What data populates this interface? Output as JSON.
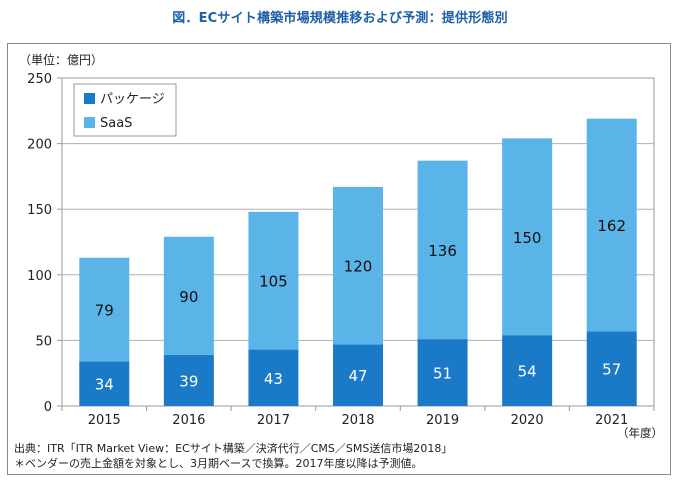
{
  "header": {
    "title": "図．ECサイト構築市場規模推移および予測：提供形態別",
    "unit_label": "（単位：億円）",
    "x_unit_label": "（年度）"
  },
  "footer": {
    "source": "出典：ITR「ITR Market View：ECサイト構築／決済代行／CMS／SMS送信市場2018」",
    "note": "＊ベンダーの売上金額を対象とし、3月期ベースで換算。2017年度以降は予測値。"
  },
  "chart_data": {
    "type": "bar",
    "stacked": true,
    "title": "図．ECサイト構築市場規模推移および予測：提供形態別",
    "xlabel": "（年度）",
    "ylabel": "（単位：億円）",
    "categories": [
      "2015",
      "2016",
      "2017",
      "2018",
      "2019",
      "2020",
      "2021"
    ],
    "ylim": [
      0,
      250
    ],
    "yticks": [
      0,
      50,
      100,
      150,
      200,
      250
    ],
    "grid": true,
    "legend_position": "top-left",
    "series": [
      {
        "name": "パッケージ",
        "values": [
          34,
          39,
          43,
          47,
          51,
          54,
          57
        ],
        "color": "#1a7ac8"
      },
      {
        "name": "SaaS",
        "values": [
          79,
          90,
          105,
          120,
          136,
          150,
          162
        ],
        "color": "#5ab4e8"
      }
    ]
  }
}
